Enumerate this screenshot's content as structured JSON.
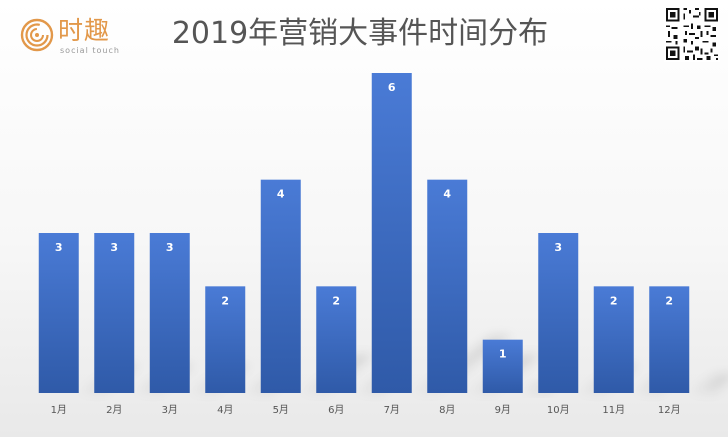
{
  "header": {
    "logo_cn": "时趣",
    "logo_en": "social touch",
    "title": "2019年营销大事件时间分布"
  },
  "colors": {
    "bar": "#4472c4",
    "bar_top": "#4a7bd6",
    "bar_bottom": "#2f5aa8",
    "logo_accent": "#e2984a"
  },
  "icons": {
    "logo": "spiral-logo-icon",
    "qr": "qr-code-icon"
  },
  "chart_data": {
    "type": "bar",
    "categories": [
      "1月",
      "2月",
      "3月",
      "4月",
      "5月",
      "6月",
      "7月",
      "8月",
      "9月",
      "10月",
      "11月",
      "12月"
    ],
    "values": [
      3,
      3,
      3,
      2,
      4,
      2,
      6,
      4,
      1,
      3,
      2,
      2
    ],
    "title": "2019年营销大事件时间分布",
    "xlabel": "",
    "ylabel": "",
    "ylim": [
      0,
      6
    ],
    "grid": false,
    "legend": "none",
    "data_labels": true
  }
}
